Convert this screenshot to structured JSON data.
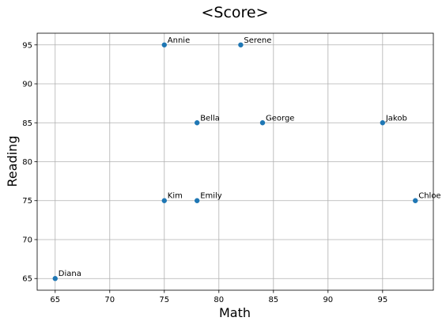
{
  "chart_data": {
    "type": "scatter",
    "title": "<Score>",
    "xlabel": "Math",
    "ylabel": "Reading",
    "xlim": [
      63.35,
      99.65
    ],
    "ylim": [
      63.5,
      96.5
    ],
    "xticks": [
      65,
      70,
      75,
      80,
      85,
      90,
      95
    ],
    "yticks": [
      65,
      70,
      75,
      80,
      85,
      90,
      95
    ],
    "grid": true,
    "marker_color": "#1f77b4",
    "points": [
      {
        "label": "Annie",
        "x": 75,
        "y": 95
      },
      {
        "label": "Serene",
        "x": 82,
        "y": 95
      },
      {
        "label": "Bella",
        "x": 78,
        "y": 85
      },
      {
        "label": "George",
        "x": 84,
        "y": 85
      },
      {
        "label": "Jakob",
        "x": 95,
        "y": 85
      },
      {
        "label": "Kim",
        "x": 75,
        "y": 75
      },
      {
        "label": "Emily",
        "x": 78,
        "y": 75
      },
      {
        "label": "Chloe",
        "x": 98,
        "y": 75
      },
      {
        "label": "Diana",
        "x": 65,
        "y": 65
      }
    ]
  }
}
